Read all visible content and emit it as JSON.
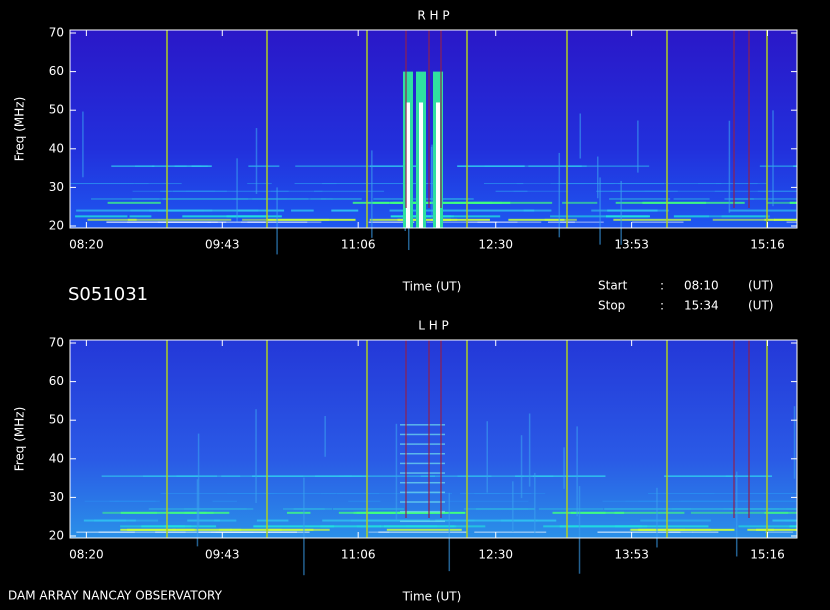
{
  "header": {
    "station": "S051031",
    "start_label": "Start",
    "stop_label": "Stop",
    "sep": ":",
    "start": "08:10",
    "stop": "15:34",
    "unit": "(UT)",
    "footer": "DAM ARRAY   NANCAY OBSERVATORY"
  },
  "chart_data": [
    {
      "type": "spectrogram",
      "title": "R H P",
      "xlabel": "Time (UT)",
      "ylabel": "Freq (MHz)",
      "xlim": [
        490,
        934
      ],
      "xticks": [
        {
          "value": 500,
          "label": "08:20"
        },
        {
          "value": 583,
          "label": "09:43"
        },
        {
          "value": 666,
          "label": "11:06"
        },
        {
          "value": 750,
          "label": "12:30"
        },
        {
          "value": 833,
          "label": "13:53"
        },
        {
          "value": 916,
          "label": "15:16"
        }
      ],
      "ylim": [
        20,
        70
      ],
      "yticks": [
        20,
        30,
        40,
        50,
        60,
        70
      ]
    },
    {
      "type": "spectrogram",
      "title": "L H P",
      "xlabel": "Time (UT)",
      "ylabel": "Freq (MHz)",
      "xlim": [
        490,
        934
      ],
      "xticks": [
        {
          "value": 500,
          "label": "08:20"
        },
        {
          "value": 583,
          "label": "09:43"
        },
        {
          "value": 666,
          "label": "11:06"
        },
        {
          "value": 750,
          "label": "12:30"
        },
        {
          "value": 833,
          "label": "13:53"
        },
        {
          "value": 916,
          "label": "15:16"
        }
      ],
      "ylim": [
        20,
        70
      ],
      "yticks": [
        20,
        30,
        40,
        50,
        60,
        70
      ]
    }
  ]
}
